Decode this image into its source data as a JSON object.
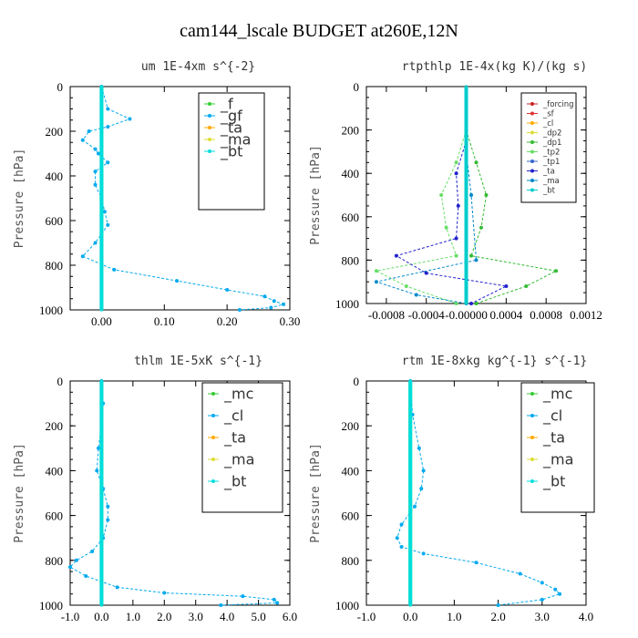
{
  "title": "cam144_lscale  BUDGET at260E,12N",
  "chart_data": [
    {
      "type": "line",
      "title": "um  1E-4xm s^{-2}",
      "ylabel": "Pressure [hPa]",
      "xlim": [
        -0.05,
        0.3
      ],
      "ylim": [
        1000,
        0
      ],
      "xticks": [
        0.0,
        0.1,
        0.2,
        0.3
      ],
      "xtick_labels": [
        "0.00",
        "0.10",
        "0.20",
        "0.30"
      ],
      "yticks": [
        0,
        200,
        400,
        600,
        800,
        1000
      ],
      "legend": [
        "_f",
        "_gf",
        "_ta",
        "_ma",
        "_bt"
      ],
      "series": [
        {
          "name": "_f",
          "color": "#33cc33",
          "x": [
            0,
            0,
            0,
            0,
            0,
            0
          ],
          "y": [
            0,
            200,
            400,
            600,
            800,
            1000
          ]
        },
        {
          "name": "_gf",
          "color": "#00aaee",
          "x": [
            0,
            0.01,
            0.045,
            0.01,
            -0.02,
            -0.03,
            -0.01,
            -0.005,
            0.01,
            -0.01,
            -0.01,
            0,
            0.005,
            0.01,
            -0.01,
            -0.03,
            0.02,
            0.12,
            0.2,
            0.26,
            0.275,
            0.29,
            0.27,
            0.22
          ],
          "y": [
            0,
            100,
            145,
            180,
            200,
            240,
            280,
            300,
            340,
            380,
            440,
            500,
            560,
            620,
            700,
            760,
            820,
            870,
            910,
            940,
            960,
            975,
            990,
            1000
          ]
        },
        {
          "name": "_bt",
          "color": "#00dddd",
          "x": [
            0,
            0,
            0,
            0,
            0,
            0
          ],
          "y": [
            0,
            200,
            400,
            600,
            800,
            1000
          ]
        }
      ]
    },
    {
      "type": "line",
      "title": "rtpthlp  1E-4x(kg K)/(kg s)",
      "ylabel": "Pressure [hPa]",
      "xlim": [
        -0.001,
        0.0012
      ],
      "ylim": [
        1000,
        0
      ],
      "xticks": [
        -0.0008,
        -0.0004,
        0.0,
        0.0004,
        0.0008,
        0.0012
      ],
      "xtick_labels": [
        "-0.0008",
        "-0.0004",
        "-0.00000",
        "0.0004",
        "0.0008",
        "0.0012"
      ],
      "yticks": [
        0,
        200,
        400,
        600,
        800,
        1000
      ],
      "legend": [
        "_forcing",
        "_sf",
        "_cl",
        "_dp2",
        "_dp1",
        "_tp2",
        "_tp1",
        "_ta",
        "_ma",
        "_bt"
      ],
      "series": [
        {
          "name": "_forcing",
          "color": "#cc2222",
          "x": [
            0,
            0,
            0,
            0,
            0,
            0
          ],
          "y": [
            0,
            200,
            400,
            600,
            800,
            1000
          ]
        },
        {
          "name": "_dp1",
          "color": "#33bb33",
          "x": [
            0,
            0.0001,
            0.0002,
            0.00015,
            5e-05,
            0.0009,
            0.0006,
            0.0001
          ],
          "y": [
            200,
            350,
            500,
            650,
            780,
            850,
            920,
            1000
          ]
        },
        {
          "name": "_tp2",
          "color": "#66dd66",
          "x": [
            0,
            -0.0001,
            -0.00025,
            -0.0002,
            -0.0001,
            -0.0009,
            -0.0006,
            -0.0001
          ],
          "y": [
            200,
            350,
            500,
            650,
            780,
            850,
            920,
            1000
          ]
        },
        {
          "name": "_ta",
          "color": "#2222cc",
          "x": [
            0,
            -0.0001,
            -8e-05,
            -0.0001,
            -0.0007,
            -0.0004,
            0.0004,
            5e-05
          ],
          "y": [
            250,
            400,
            550,
            700,
            780,
            860,
            920,
            1000
          ]
        },
        {
          "name": "_ma",
          "color": "#0088cc",
          "x": [
            0,
            5e-05,
            0.0001,
            -0.0009,
            -0.0005,
            0
          ],
          "y": [
            300,
            500,
            800,
            900,
            960,
            1000
          ]
        },
        {
          "name": "_bt",
          "color": "#00cccc",
          "x": [
            0,
            0,
            0,
            0
          ],
          "y": [
            0,
            400,
            800,
            1000
          ]
        }
      ]
    },
    {
      "type": "line",
      "title": "thlm  1E-5xK s^{-1}",
      "ylabel": "Pressure [hPa]",
      "xlim": [
        -1.0,
        6.0
      ],
      "ylim": [
        1000,
        0
      ],
      "xticks": [
        -1.0,
        0.0,
        1.0,
        2.0,
        3.0,
        4.0,
        5.0,
        6.0
      ],
      "xtick_labels": [
        "-1.0",
        "0.0",
        "1.0",
        "2.0",
        "3.0",
        "4.0",
        "5.0",
        "6.0"
      ],
      "yticks": [
        0,
        200,
        400,
        600,
        800,
        1000
      ],
      "legend": [
        "_mc",
        "_cl",
        "_ta",
        "_ma",
        "_bt"
      ],
      "series": [
        {
          "name": "_mc",
          "color": "#33cc33",
          "x": [
            0,
            0,
            0,
            0,
            0,
            0
          ],
          "y": [
            0,
            200,
            400,
            600,
            800,
            1000
          ]
        },
        {
          "name": "_cl",
          "color": "#00aaee",
          "x": [
            0,
            0.05,
            0.0,
            -0.1,
            -0.15,
            0.05,
            0.2,
            0.2,
            0.05,
            -0.3,
            -0.8,
            -1.0,
            -0.5,
            0.5,
            2.0,
            4.5,
            5.5,
            5.6,
            3.8
          ],
          "y": [
            0,
            100,
            200,
            300,
            400,
            480,
            560,
            620,
            700,
            760,
            800,
            830,
            870,
            920,
            945,
            960,
            975,
            990,
            1000
          ]
        },
        {
          "name": "_bt",
          "color": "#00dddd",
          "x": [
            0,
            0,
            0,
            0,
            0,
            0
          ],
          "y": [
            0,
            200,
            400,
            600,
            800,
            1000
          ]
        }
      ]
    },
    {
      "type": "line",
      "title": "rtm  1E-8xkg kg^{-1} s^{-1}",
      "ylabel": "Pressure [hPa]",
      "xlim": [
        -1.0,
        4.0
      ],
      "ylim": [
        1000,
        0
      ],
      "xticks": [
        -1.0,
        0.0,
        1.0,
        2.0,
        3.0,
        4.0
      ],
      "xtick_labels": [
        "-1.0",
        "0.0",
        "1.0",
        "2.0",
        "3.0",
        "4.0"
      ],
      "yticks": [
        0,
        200,
        400,
        600,
        800,
        1000
      ],
      "legend": [
        "_mc",
        "_cl",
        "_ta",
        "_ma",
        "_bt"
      ],
      "series": [
        {
          "name": "_mc",
          "color": "#33cc33",
          "x": [
            0,
            0,
            0,
            0,
            0,
            0
          ],
          "y": [
            0,
            200,
            400,
            600,
            800,
            1000
          ]
        },
        {
          "name": "_cl",
          "color": "#00aaee",
          "x": [
            0,
            0.05,
            0.2,
            0.3,
            0.25,
            0.1,
            -0.2,
            -0.3,
            -0.2,
            0.3,
            1.5,
            2.5,
            3.0,
            3.3,
            3.4,
            3.0,
            2.0
          ],
          "y": [
            0,
            150,
            300,
            400,
            480,
            560,
            640,
            700,
            740,
            770,
            810,
            860,
            900,
            930,
            950,
            975,
            1000
          ]
        },
        {
          "name": "_bt",
          "color": "#00dddd",
          "x": [
            0,
            0,
            0,
            0,
            0,
            0
          ],
          "y": [
            0,
            200,
            400,
            600,
            800,
            1000
          ]
        }
      ]
    }
  ]
}
